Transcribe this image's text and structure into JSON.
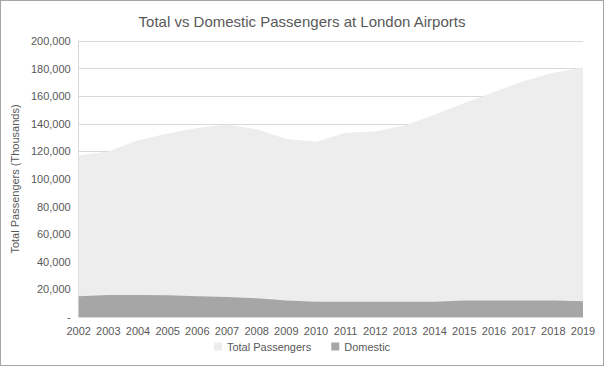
{
  "chart_data": {
    "type": "area",
    "title": "Total vs Domestic Passengers at London Airports",
    "y_label": "Total Passengers (Thousands)",
    "categories": [
      "2002",
      "2003",
      "2004",
      "2005",
      "2006",
      "2007",
      "2008",
      "2009",
      "2010",
      "2011",
      "2012",
      "2013",
      "2014",
      "2015",
      "2016",
      "2017",
      "2018",
      "2019"
    ],
    "series": [
      {
        "name": "Total Passengers",
        "color": "#ededed",
        "values": [
          117000,
          120000,
          128000,
          133000,
          137000,
          139500,
          136000,
          129000,
          127000,
          133500,
          134500,
          139000,
          146500,
          155000,
          163000,
          171000,
          177000,
          181000
        ]
      },
      {
        "name": "Domestic",
        "color": "#a6a6a6",
        "values": [
          15000,
          16000,
          16000,
          15800,
          15000,
          14500,
          13500,
          12000,
          11000,
          11000,
          11000,
          11000,
          11000,
          12000,
          12000,
          12000,
          12000,
          11500
        ]
      }
    ],
    "ylim": [
      0,
      200000
    ],
    "yticks": [
      {
        "value": 0,
        "label": "-"
      },
      {
        "value": 20000,
        "label": "20,000"
      },
      {
        "value": 40000,
        "label": "40,000"
      },
      {
        "value": 60000,
        "label": "60,000"
      },
      {
        "value": 80000,
        "label": "80,000"
      },
      {
        "value": 100000,
        "label": "100,000"
      },
      {
        "value": 120000,
        "label": "120,000"
      },
      {
        "value": 140000,
        "label": "140,000"
      },
      {
        "value": 160000,
        "label": "160,000"
      },
      {
        "value": 180000,
        "label": "180,000"
      },
      {
        "value": 200000,
        "label": "200,000"
      }
    ],
    "grid": true,
    "legend": "bottom",
    "stacked": false
  }
}
